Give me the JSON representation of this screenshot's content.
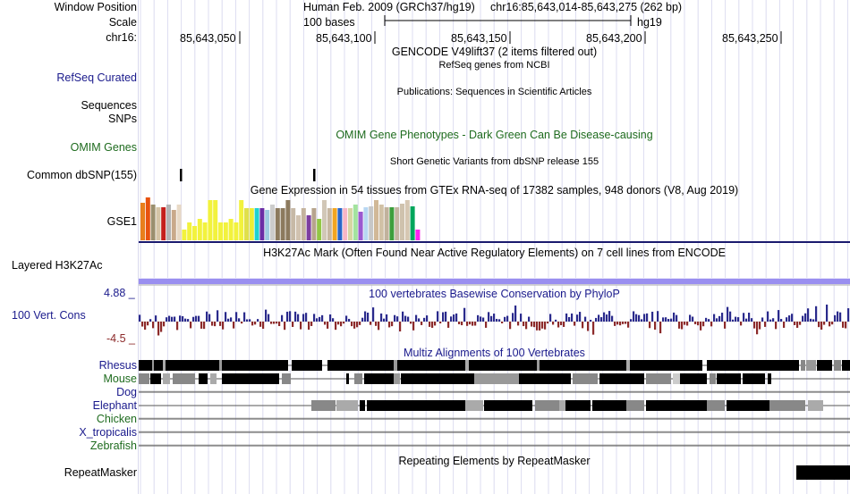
{
  "ruler": {
    "window_position_label": "Window Position",
    "scale_label": "Scale",
    "chrom_label": "chr16:",
    "assembly": "Human Feb. 2009 (GRCh37/hg19)",
    "position": "chr16:85,643,014-85,643,275 (262 bp)",
    "scale_text": "100 bases",
    "db": "hg19",
    "ticks": [
      "85,643,050",
      "85,643,100",
      "85,643,150",
      "85,643,200",
      "85,643,250"
    ]
  },
  "tracks": {
    "gencode": {
      "title": "GENCODE V49lift37 (2 items filtered out)"
    },
    "refseq": {
      "label": "RefSeq Curated",
      "title": "RefSeq genes from NCBI"
    },
    "publications": {
      "title": "Publications: Sequences in Scientific Articles"
    },
    "sequences": {
      "label": "Sequences"
    },
    "snps": {
      "label": "SNPs"
    },
    "omim": {
      "label": "OMIM Genes",
      "title": "OMIM Gene Phenotypes - Dark Green Can Be Disease-causing"
    },
    "dbsnp": {
      "label": "Common dbSNP(155)",
      "title": "Short Genetic Variants from dbSNP release 155"
    },
    "gtex": {
      "title": "Gene Expression in 54 tissues from GTEx RNA-seq of 17382 samples, 948 donors (V8, Aug 2019)",
      "label": "GSE1",
      "values": [
        42,
        48,
        40,
        37,
        37,
        40,
        34,
        40,
        12,
        20,
        16,
        24,
        20,
        45,
        45,
        20,
        20,
        24,
        20,
        45,
        36,
        36,
        36,
        36,
        34,
        40,
        36,
        36,
        45,
        36,
        28,
        36,
        28,
        36,
        24,
        45,
        36,
        36,
        36,
        36,
        36,
        40,
        32,
        37,
        38,
        45,
        40,
        37,
        37,
        37,
        41,
        45,
        38,
        12
      ],
      "colors": [
        "#e87f1c",
        "#e8520f",
        "#9b8f6e",
        "#d5c4a6",
        "#c41f1c",
        "#b3b3b3",
        "#c9a98a",
        "#e8d9c6",
        "#f2f23d",
        "#f2f23d",
        "#f2f23d",
        "#f2f23d",
        "#f2f23d",
        "#f2f23d",
        "#f2f23d",
        "#f2f23d",
        "#f2f23d",
        "#f2f23d",
        "#f2f23d",
        "#f2f23d",
        "#e0e04a",
        "#eded35",
        "#1fd1d1",
        "#6a2ea6",
        "#9ecae1",
        "#cccccc",
        "#8c7a5e",
        "#8c7a5e",
        "#8c7a5e",
        "#c7b9a6",
        "#d1c2b0",
        "#c4b39d",
        "#7d3ea0",
        "#b7a48d",
        "#92c745",
        "#d1c7b7",
        "#c7b7a1",
        "#f2a521",
        "#2a66c9",
        "#f7b6c7",
        "#d6d6a3",
        "#a3e39e",
        "#9b59d0",
        "#b7d7f2",
        "#c7c7c7",
        "#d1b897",
        "#d1c1a6",
        "#c1b29c",
        "#3d9e3d",
        "#c3b5a1",
        "#cfc2ad",
        "#d6c7b2",
        "#00a65c",
        "#ff1ff0"
      ]
    },
    "h3k27ac": {
      "label": "Layered H3K27Ac",
      "title": "H3K27Ac Mark (Often Found Near Active Regulatory Elements) on 7 cell lines from ENCODE"
    },
    "cons": {
      "label": "100 Vert. Cons",
      "max_label": "4.88 _",
      "min_label": "-4.5 _",
      "title": "100 vertebrates Basewise Conservation by PhyloP",
      "pos_color": "#2a2a8c",
      "neg_color": "#8c2a2a"
    },
    "multiz": {
      "title": "Multiz Alignments of 100 Vertebrates",
      "species": [
        {
          "name": "Rhesus",
          "color": "blue"
        },
        {
          "name": "Mouse",
          "color": "green"
        },
        {
          "name": "Dog",
          "color": "blue"
        },
        {
          "name": "Elephant",
          "color": "blue"
        },
        {
          "name": "Chicken",
          "color": "green"
        },
        {
          "name": "X_tropicalis",
          "color": "blue"
        },
        {
          "name": "Zebrafish",
          "color": "green"
        }
      ]
    },
    "repeatmasker": {
      "label": "RepeatMasker",
      "title": "Repeating Elements by RepeatMasker"
    }
  }
}
